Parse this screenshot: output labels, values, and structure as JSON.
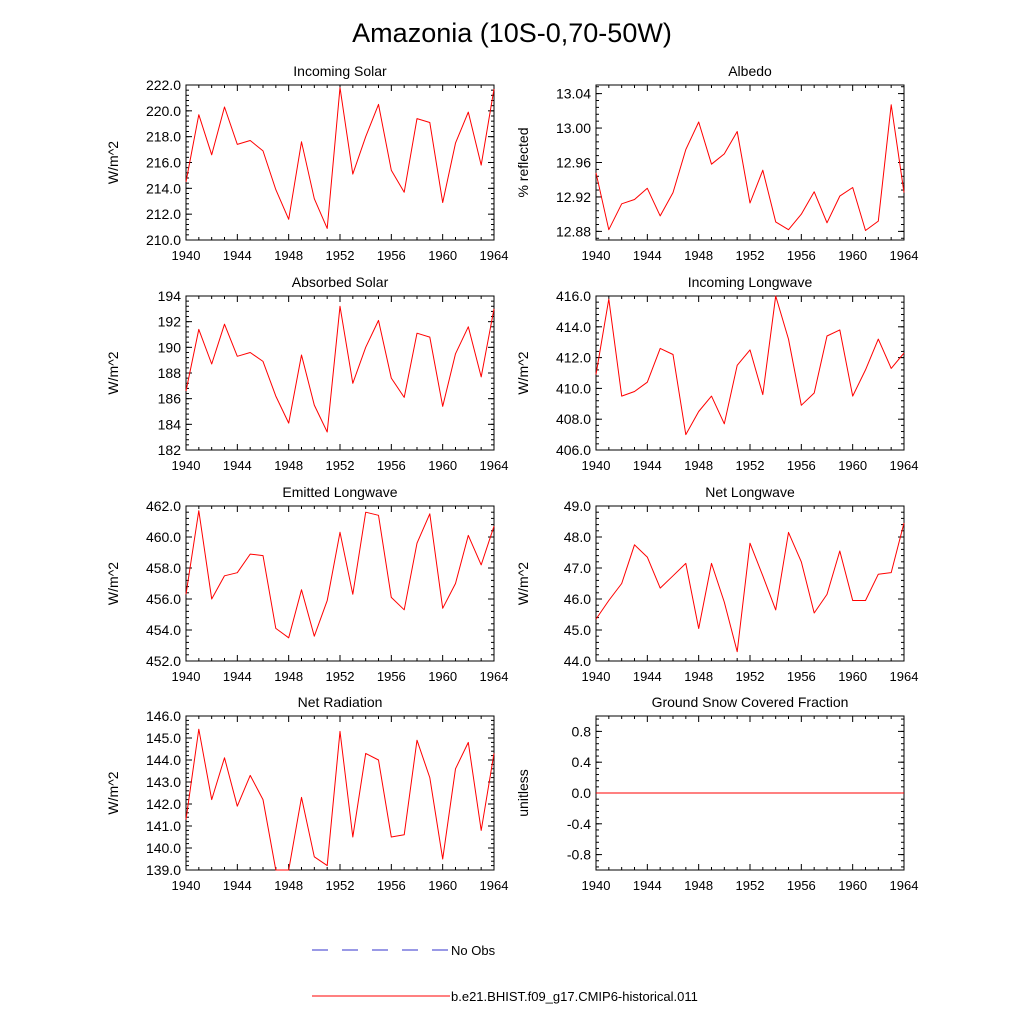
{
  "title": "Amazonia (10S-0,70-50W)",
  "colors": {
    "model": "#ff0000",
    "obs": "#3333cc",
    "axis": "#000000"
  },
  "legend": {
    "placement": "bottom-center",
    "obs_label": "No Obs",
    "model_label": "b.e21.BHIST.f09_g17.CMIP6-historical.011"
  },
  "chart_data": [
    {
      "type": "line",
      "title": "Incoming Solar",
      "ylabel": "W/m^2",
      "xlim": [
        1940,
        1964
      ],
      "ylim": [
        210,
        222
      ],
      "xticks": [
        "1940",
        "1944",
        "1948",
        "1952",
        "1956",
        "1960",
        "1964"
      ],
      "yticks": [
        "210.0",
        "212.0",
        "214.0",
        "216.0",
        "218.0",
        "220.0",
        "222.0"
      ],
      "x": [
        1940,
        1941,
        1942,
        1943,
        1944,
        1945,
        1946,
        1947,
        1948,
        1949,
        1950,
        1951,
        1952,
        1953,
        1954,
        1955,
        1956,
        1957,
        1958,
        1959,
        1960,
        1961,
        1962,
        1963,
        1964
      ],
      "series": [
        {
          "name": "b.e21.BHIST.f09_g17.CMIP6-historical.011",
          "values": [
            214.5,
            219.7,
            216.6,
            220.3,
            217.4,
            217.7,
            216.9,
            213.9,
            211.6,
            217.6,
            213.2,
            210.9,
            221.8,
            215.1,
            218.0,
            220.5,
            215.4,
            213.7,
            219.4,
            219.1,
            212.9,
            217.5,
            219.9,
            215.8,
            221.7
          ]
        }
      ]
    },
    {
      "type": "line",
      "title": "Albedo",
      "ylabel": "% reflected",
      "xlim": [
        1940,
        1964
      ],
      "ylim": [
        12.87,
        13.05
      ],
      "xticks": [
        "1940",
        "1944",
        "1948",
        "1952",
        "1956",
        "1960",
        "1964"
      ],
      "yticks": [
        "12.88",
        "12.92",
        "12.96",
        "13.00",
        "13.04"
      ],
      "x": [
        1940,
        1941,
        1942,
        1943,
        1944,
        1945,
        1946,
        1947,
        1948,
        1949,
        1950,
        1951,
        1952,
        1953,
        1954,
        1955,
        1956,
        1957,
        1958,
        1959,
        1960,
        1961,
        1962,
        1963,
        1964
      ],
      "series": [
        {
          "name": "b.e21.BHIST.f09_g17.CMIP6-historical.011",
          "values": [
            12.948,
            12.882,
            12.912,
            12.917,
            12.93,
            12.898,
            12.925,
            12.975,
            13.007,
            12.958,
            12.97,
            12.996,
            12.913,
            12.951,
            12.891,
            12.882,
            12.9,
            12.926,
            12.89,
            12.921,
            12.931,
            12.881,
            12.892,
            13.027,
            12.925
          ]
        }
      ]
    },
    {
      "type": "line",
      "title": "Absorbed Solar",
      "ylabel": "W/m^2",
      "xlim": [
        1940,
        1964
      ],
      "ylim": [
        182,
        194
      ],
      "xticks": [
        "1940",
        "1944",
        "1948",
        "1952",
        "1956",
        "1960",
        "1964"
      ],
      "yticks": [
        "182",
        "184",
        "186",
        "188",
        "190",
        "192",
        "194"
      ],
      "x": [
        1940,
        1941,
        1942,
        1943,
        1944,
        1945,
        1946,
        1947,
        1948,
        1949,
        1950,
        1951,
        1952,
        1953,
        1954,
        1955,
        1956,
        1957,
        1958,
        1959,
        1960,
        1961,
        1962,
        1963,
        1964
      ],
      "series": [
        {
          "name": "b.e21.BHIST.f09_g17.CMIP6-historical.011",
          "values": [
            186.6,
            191.4,
            188.7,
            191.8,
            189.3,
            189.6,
            188.9,
            186.2,
            184.1,
            189.4,
            185.5,
            183.4,
            193.2,
            187.2,
            190.0,
            192.1,
            187.6,
            186.1,
            191.1,
            190.8,
            185.4,
            189.5,
            191.6,
            187.7,
            193.0
          ]
        }
      ]
    },
    {
      "type": "line",
      "title": "Incoming Longwave",
      "ylabel": "W/m^2",
      "xlim": [
        1940,
        1964
      ],
      "ylim": [
        406,
        416
      ],
      "xticks": [
        "1940",
        "1944",
        "1948",
        "1952",
        "1956",
        "1960",
        "1964"
      ],
      "yticks": [
        "406.0",
        "408.0",
        "410.0",
        "412.0",
        "414.0",
        "416.0"
      ],
      "x": [
        1940,
        1941,
        1942,
        1943,
        1944,
        1945,
        1946,
        1947,
        1948,
        1949,
        1950,
        1951,
        1952,
        1953,
        1954,
        1955,
        1956,
        1957,
        1958,
        1959,
        1960,
        1961,
        1962,
        1963,
        1964
      ],
      "series": [
        {
          "name": "b.e21.BHIST.f09_g17.CMIP6-historical.011",
          "values": [
            410.9,
            415.8,
            409.5,
            409.8,
            410.4,
            412.6,
            412.2,
            407.0,
            408.5,
            409.5,
            407.7,
            411.5,
            412.5,
            409.6,
            416.0,
            413.2,
            408.9,
            409.7,
            413.4,
            413.8,
            409.5,
            411.2,
            413.2,
            411.3,
            412.3
          ]
        }
      ]
    },
    {
      "type": "line",
      "title": "Emitted Longwave",
      "ylabel": "W/m^2",
      "xlim": [
        1940,
        1964
      ],
      "ylim": [
        452,
        462
      ],
      "xticks": [
        "1940",
        "1944",
        "1948",
        "1952",
        "1956",
        "1960",
        "1964"
      ],
      "yticks": [
        "452.0",
        "454.0",
        "456.0",
        "458.0",
        "460.0",
        "462.0"
      ],
      "x": [
        1940,
        1941,
        1942,
        1943,
        1944,
        1945,
        1946,
        1947,
        1948,
        1949,
        1950,
        1951,
        1952,
        1953,
        1954,
        1955,
        1956,
        1957,
        1958,
        1959,
        1960,
        1961,
        1962,
        1963,
        1964
      ],
      "series": [
        {
          "name": "b.e21.BHIST.f09_g17.CMIP6-historical.011",
          "values": [
            456.3,
            461.7,
            456.0,
            457.5,
            457.7,
            458.9,
            458.8,
            454.1,
            453.5,
            456.6,
            453.6,
            455.9,
            460.3,
            456.3,
            461.6,
            461.4,
            456.1,
            455.3,
            459.6,
            461.5,
            455.4,
            457.0,
            460.1,
            458.2,
            460.7
          ]
        }
      ]
    },
    {
      "type": "line",
      "title": "Net Longwave",
      "ylabel": "W/m^2",
      "xlim": [
        1940,
        1964
      ],
      "ylim": [
        44,
        49
      ],
      "xticks": [
        "1940",
        "1944",
        "1948",
        "1952",
        "1956",
        "1960",
        "1964"
      ],
      "yticks": [
        "44.0",
        "45.0",
        "46.0",
        "47.0",
        "48.0",
        "49.0"
      ],
      "x": [
        1940,
        1941,
        1942,
        1943,
        1944,
        1945,
        1946,
        1947,
        1948,
        1949,
        1950,
        1951,
        1952,
        1953,
        1954,
        1955,
        1956,
        1957,
        1958,
        1959,
        1960,
        1961,
        1962,
        1963,
        1964
      ],
      "series": [
        {
          "name": "b.e21.BHIST.f09_g17.CMIP6-historical.011",
          "values": [
            45.35,
            45.95,
            46.5,
            47.75,
            47.35,
            46.35,
            46.75,
            47.15,
            45.05,
            47.15,
            45.9,
            44.3,
            47.8,
            46.75,
            45.65,
            48.15,
            47.2,
            45.55,
            46.15,
            47.55,
            45.95,
            45.95,
            46.8,
            46.85,
            48.45
          ]
        }
      ]
    },
    {
      "type": "line",
      "title": "Net Radiation",
      "ylabel": "W/m^2",
      "xlim": [
        1940,
        1964
      ],
      "ylim": [
        139,
        146
      ],
      "xticks": [
        "1940",
        "1944",
        "1948",
        "1952",
        "1956",
        "1960",
        "1964"
      ],
      "yticks": [
        "139.0",
        "140.0",
        "141.0",
        "142.0",
        "143.0",
        "144.0",
        "145.0",
        "146.0"
      ],
      "x": [
        1940,
        1941,
        1942,
        1943,
        1944,
        1945,
        1946,
        1947,
        1948,
        1949,
        1950,
        1951,
        1952,
        1953,
        1954,
        1955,
        1956,
        1957,
        1958,
        1959,
        1960,
        1961,
        1962,
        1963,
        1964
      ],
      "series": [
        {
          "name": "b.e21.BHIST.f09_g17.CMIP6-historical.011",
          "values": [
            141.3,
            145.4,
            142.2,
            144.1,
            141.9,
            143.3,
            142.2,
            139.0,
            139.0,
            142.3,
            139.6,
            139.2,
            145.3,
            140.5,
            144.3,
            144.0,
            140.5,
            140.6,
            144.9,
            143.2,
            139.5,
            143.6,
            144.8,
            140.8,
            144.3
          ]
        }
      ]
    },
    {
      "type": "line",
      "title": "Ground Snow Covered Fraction",
      "ylabel": "unitless",
      "xlim": [
        1940,
        1964
      ],
      "ylim": [
        -1,
        1
      ],
      "xticks": [
        "1940",
        "1944",
        "1948",
        "1952",
        "1956",
        "1960",
        "1964"
      ],
      "yticks": [
        "-0.8",
        "-0.4",
        "0.0",
        "0.4",
        "0.8"
      ],
      "x": [
        1940,
        1941,
        1942,
        1943,
        1944,
        1945,
        1946,
        1947,
        1948,
        1949,
        1950,
        1951,
        1952,
        1953,
        1954,
        1955,
        1956,
        1957,
        1958,
        1959,
        1960,
        1961,
        1962,
        1963,
        1964
      ],
      "series": [
        {
          "name": "b.e21.BHIST.f09_g17.CMIP6-historical.011",
          "values": [
            0,
            0,
            0,
            0,
            0,
            0,
            0,
            0,
            0,
            0,
            0,
            0,
            0,
            0,
            0,
            0,
            0,
            0,
            0,
            0,
            0,
            0,
            0,
            0,
            0
          ]
        }
      ]
    }
  ]
}
